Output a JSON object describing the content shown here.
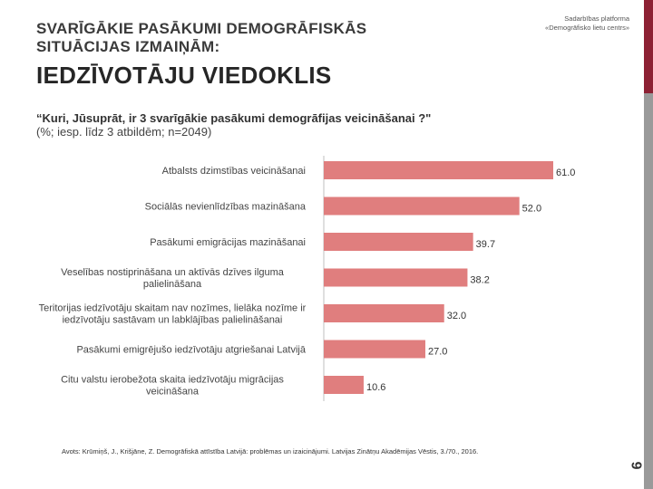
{
  "header": {
    "title_line1": "SVARĪGĀKIE PASĀKUMI DEMOGRĀFISKĀS",
    "title_line2": "SITUĀCIJAS IZMAIŅĀM:",
    "title_line3": "IEDZĪVOTĀJU VIEDOKLIS",
    "platform_line1": "Sadarbības platforma",
    "platform_line2": "«Demogrāfisko lietu centrs»"
  },
  "question": "“Kuri, Jūsuprāt, ir 3 svarīgākie pasākumi demogrāfijas veicināšanai ?\"",
  "subquestion": "(%; iesp. līdz 3 atbildēm; n=2049)",
  "source": "Avots: Krūmiņš, J., Krišjāne, Z. Demogrāfiskā attīstība Latvijā: problēmas un izaicinājumi. Latvijas Zinātņu Akadēmijas Vēstis, 3./70., 2016.",
  "page_number": "6",
  "colors": {
    "bar": "#e07e7e",
    "accent_red": "#8d2134",
    "side_gray": "#9a9a9a"
  },
  "chart_data": {
    "type": "bar",
    "orientation": "horizontal",
    "categories": [
      [
        "Atbalsts dzimstības veicināšanai"
      ],
      [
        "Sociālās nevienlīdzības mazināšana"
      ],
      [
        "Pasākumi emigrācijas mazināšanai"
      ],
      [
        "Veselības nostiprināšana un aktīvās dzīves ilguma",
        "palielināšana"
      ],
      [
        "Teritorijas iedzīvotāju skaitam nav nozīmes, lielāka nozīme ir",
        "iedzīvotāju sastāvam un labklājības palielināšanai"
      ],
      [
        "Pasākumi emigrējušo iedzīvotāju atgriešanai Latvijā"
      ],
      [
        "Citu valstu ierobežota skaita iedzīvotāju migrācijas",
        "veicināšana"
      ]
    ],
    "values": [
      61.0,
      52.0,
      39.7,
      38.2,
      32.0,
      27.0,
      10.6
    ],
    "value_labels": [
      "61.0",
      "52.0",
      "39.7",
      "38.2",
      "32.0",
      "27.0",
      "10.6"
    ],
    "xlim": [
      0,
      61
    ],
    "grid": false,
    "legend": "none"
  }
}
